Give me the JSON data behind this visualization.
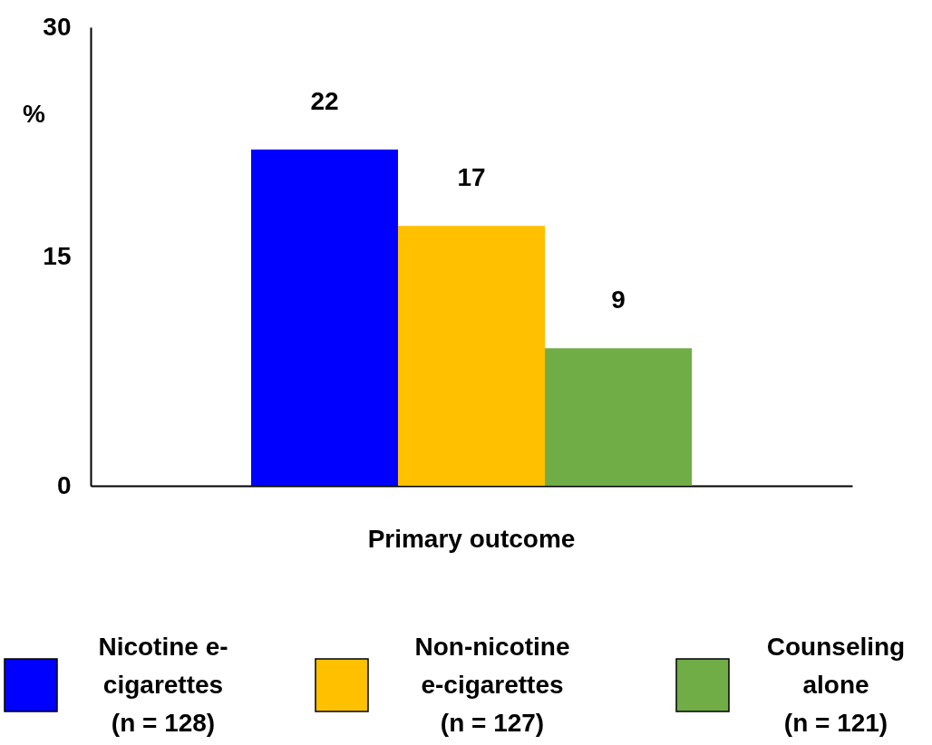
{
  "chart_data": {
    "type": "bar",
    "categories": [
      "Primary outcome"
    ],
    "ylabel": "%",
    "series": [
      {
        "name": "Nicotine e-\ncigarettes\n(n = 128)",
        "color": "#0000ff",
        "values": [
          22
        ]
      },
      {
        "name": "Non-nicotine\ne-cigarettes\n(n = 127)",
        "color": "#ffc000",
        "values": [
          17
        ]
      },
      {
        "name": "Counseling\nalone\n(n = 121)",
        "color": "#70ad47",
        "values": [
          9
        ]
      }
    ],
    "ylim": [
      0,
      30
    ],
    "yticks": [
      0,
      15,
      30
    ],
    "data_labels": true,
    "grid": false,
    "legend": "bottom"
  }
}
